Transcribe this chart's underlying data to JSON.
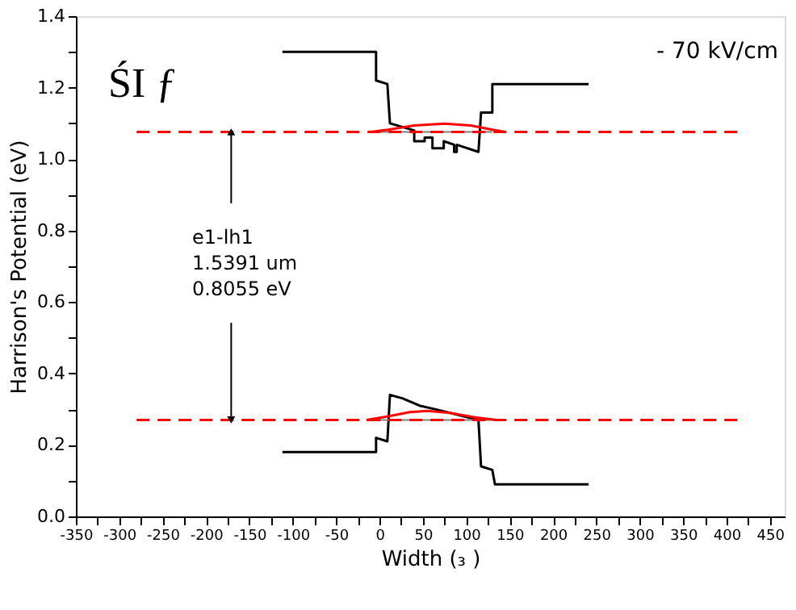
{
  "chart_data": {
    "type": "line",
    "xlabel": "Width (₃ )",
    "ylabel": "Harrison's Potential (eV)",
    "xlim": [
      -350,
      467
    ],
    "ylim": [
      0,
      1.4
    ],
    "xticks": [
      -350,
      {
        "value": -325,
        "label": null
      },
      -300,
      {
        "value": -275,
        "label": null
      },
      -250,
      {
        "value": -225,
        "label": null
      },
      -200,
      {
        "value": -175,
        "label": null
      },
      -150,
      {
        "value": -125,
        "label": null
      },
      -100,
      {
        "value": -75,
        "label": null
      },
      -50,
      {
        "value": -25,
        "label": null
      },
      0,
      {
        "value": 25,
        "label": null
      },
      50,
      {
        "value": 75,
        "label": null
      },
      100,
      {
        "value": 125,
        "label": null
      },
      150,
      {
        "value": 175,
        "label": null
      },
      200,
      {
        "value": 225,
        "label": null
      },
      250,
      {
        "value": 275,
        "label": null
      },
      300,
      {
        "value": 325,
        "label": null
      },
      350,
      {
        "value": 375,
        "label": null
      },
      400,
      {
        "value": 425,
        "label": null
      },
      450
    ],
    "yticks": [
      {
        "value": 0,
        "label": "0.0"
      },
      {
        "value": 0.1,
        "label": null
      },
      0.2,
      {
        "value": 0.3,
        "label": null
      },
      0.4,
      {
        "value": 0.5,
        "label": null
      },
      0.6,
      {
        "value": 0.7,
        "label": null
      },
      0.8,
      {
        "value": 0.9,
        "label": null
      },
      {
        "value": 1,
        "label": "1.0"
      },
      {
        "value": 1.1,
        "label": null
      },
      1.2,
      {
        "value": 1.3,
        "label": null
      },
      1.4
    ],
    "grid": false,
    "marker": "none",
    "annotations": [
      "ŚI ƒ",
      "- 70  kV/cm",
      {
        "text": "e1-lh1\n1.5391 um\n0.8055 eV",
        "x": -171,
        "y": 1.076
      }
    ],
    "series": [
      {
        "color": "#000000",
        "line_style": "solid",
        "x": [
          -112,
          -4,
          -4,
          9,
          12,
          40,
          40,
          52,
          52,
          61,
          61,
          74,
          74,
          86,
          86,
          89,
          89,
          114,
          117,
          130,
          130,
          241
        ],
        "values": [
          1.3,
          1.3,
          1.22,
          1.21,
          1.1,
          1.08,
          1.05,
          1.05,
          1.06,
          1.06,
          1.03,
          1.03,
          1.05,
          1.04,
          1.02,
          1.02,
          1.04,
          1.02,
          1.13,
          1.13,
          1.21,
          1.21
        ]
      },
      {
        "color": "#000000",
        "line_style": "solid",
        "x": [
          -112,
          -4,
          -4,
          9,
          12,
          27,
          46,
          64,
          114,
          117,
          130,
          133,
          241
        ],
        "values": [
          0.18,
          0.18,
          0.22,
          0.21,
          0.34,
          0.33,
          0.31,
          0.3,
          0.27,
          0.14,
          0.13,
          0.09,
          0.09
        ]
      },
      {
        "color": "#808080",
        "line_style": "solid",
        "x": [
          -4,
          130
        ],
        "values": [
          1.076,
          1.076
        ]
      },
      {
        "color": "#808080",
        "line_style": "solid",
        "x": [
          -4,
          130
        ],
        "values": [
          0.27,
          0.27
        ]
      },
      {
        "color": "#ff0000",
        "line_style": "dashed",
        "x": [
          -280,
          415
        ],
        "values": [
          1.076,
          1.076
        ]
      },
      {
        "color": "#ff0000",
        "line_style": "dashed",
        "x": [
          -280,
          415
        ],
        "values": [
          0.27,
          0.27
        ]
      },
      {
        "color": "#ff0000",
        "line_style": "solid",
        "x": [
          -10,
          10,
          40,
          75,
          105,
          130,
          145
        ],
        "values": [
          1.076,
          1.082,
          1.094,
          1.099,
          1.094,
          1.082,
          1.076
        ]
      },
      {
        "color": "#ff0000",
        "line_style": "solid",
        "x": [
          -15,
          10,
          35,
          55,
          80,
          110,
          135
        ],
        "values": [
          0.27,
          0.28,
          0.292,
          0.295,
          0.29,
          0.277,
          0.27
        ]
      }
    ]
  }
}
